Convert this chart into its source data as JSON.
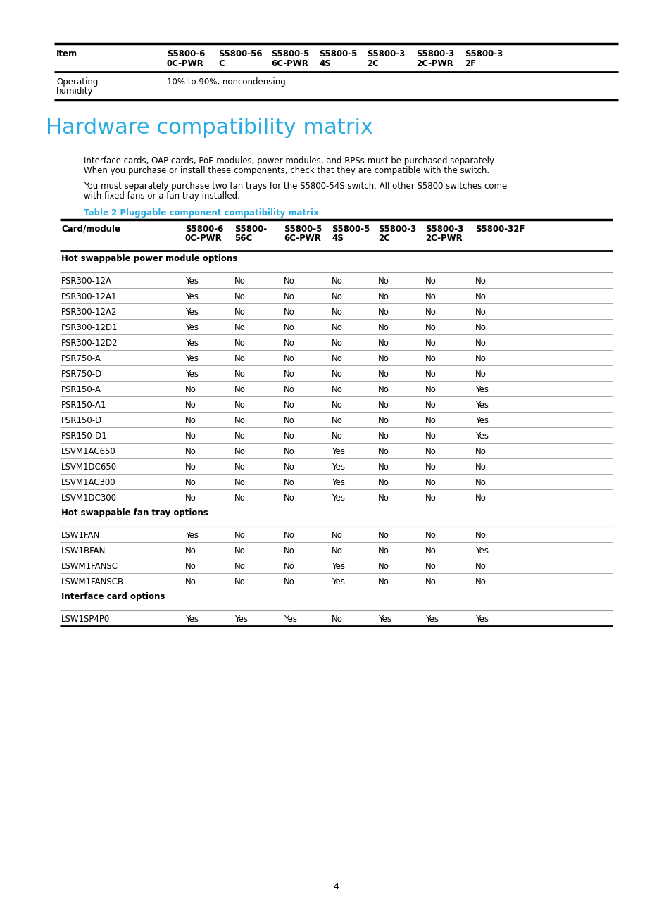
{
  "page_bg": "#ffffff",
  "top_table_headers": [
    "Item",
    "S5800-6\n0C-PWR",
    "S5800-56\nC",
    "S5800-5\n6C-PWR",
    "S5800-5\n4S",
    "S5800-3\n2C",
    "S5800-3\n2C-PWR",
    "S5800-3\n2F"
  ],
  "top_table_row_label": "Operating\nhumidity",
  "top_table_row_value": "10% to 90%, noncondensing",
  "section_title": "Hardware compatibility matrix",
  "section_title_color": "#29abe2",
  "para1_line1": "Interface cards, OAP cards, PoE modules, power modules, and RPSs must be purchased separately.",
  "para1_line2": "When you purchase or install these components, check that they are compatible with the switch.",
  "para2_line1": "You must separately purchase two fan trays for the S5800-54S switch. All other S5800 switches come",
  "para2_line2": "with fixed fans or a fan tray installed.",
  "table2_title": "Table 2 Pluggable component compatibility matrix",
  "table2_title_color": "#29abe2",
  "table2_col0_header": "Card/module",
  "table2_col_headers": [
    "S5800-6\n0C-PWR",
    "S5800-\n56C",
    "S5800-5\n6C-PWR",
    "S5800-5\n4S",
    "S5800-3\n2C",
    "S5800-3\n2C-PWR",
    "S5800-32F"
  ],
  "table2_sections": [
    {
      "section_name": "Hot swappable power module options",
      "rows": [
        [
          "PSR300-12A",
          "Yes",
          "No",
          "No",
          "No",
          "No",
          "No",
          "No"
        ],
        [
          "PSR300-12A1",
          "Yes",
          "No",
          "No",
          "No",
          "No",
          "No",
          "No"
        ],
        [
          "PSR300-12A2",
          "Yes",
          "No",
          "No",
          "No",
          "No",
          "No",
          "No"
        ],
        [
          "PSR300-12D1",
          "Yes",
          "No",
          "No",
          "No",
          "No",
          "No",
          "No"
        ],
        [
          "PSR300-12D2",
          "Yes",
          "No",
          "No",
          "No",
          "No",
          "No",
          "No"
        ],
        [
          "PSR750-A",
          "Yes",
          "No",
          "No",
          "No",
          "No",
          "No",
          "No"
        ],
        [
          "PSR750-D",
          "Yes",
          "No",
          "No",
          "No",
          "No",
          "No",
          "No"
        ],
        [
          "PSR150-A",
          "No",
          "No",
          "No",
          "No",
          "No",
          "No",
          "Yes"
        ],
        [
          "PSR150-A1",
          "No",
          "No",
          "No",
          "No",
          "No",
          "No",
          "Yes"
        ],
        [
          "PSR150-D",
          "No",
          "No",
          "No",
          "No",
          "No",
          "No",
          "Yes"
        ],
        [
          "PSR150-D1",
          "No",
          "No",
          "No",
          "No",
          "No",
          "No",
          "Yes"
        ],
        [
          "LSVM1AC650",
          "No",
          "No",
          "No",
          "Yes",
          "No",
          "No",
          "No"
        ],
        [
          "LSVM1DC650",
          "No",
          "No",
          "No",
          "Yes",
          "No",
          "No",
          "No"
        ],
        [
          "LSVM1AC300",
          "No",
          "No",
          "No",
          "Yes",
          "No",
          "No",
          "No"
        ],
        [
          "LSVM1DC300",
          "No",
          "No",
          "No",
          "Yes",
          "No",
          "No",
          "No"
        ]
      ]
    },
    {
      "section_name": "Hot swappable fan tray options",
      "rows": [
        [
          "LSW1FAN",
          "Yes",
          "No",
          "No",
          "No",
          "No",
          "No",
          "No"
        ],
        [
          "LSW1BFAN",
          "No",
          "No",
          "No",
          "No",
          "No",
          "No",
          "Yes"
        ],
        [
          "LSWM1FANSC",
          "No",
          "No",
          "No",
          "Yes",
          "No",
          "No",
          "No"
        ],
        [
          "LSWM1FANSCB",
          "No",
          "No",
          "No",
          "Yes",
          "No",
          "No",
          "No"
        ]
      ]
    },
    {
      "section_name": "Interface card options",
      "rows": [
        [
          "LSW1SP4P0",
          "Yes",
          "Yes",
          "Yes",
          "No",
          "Yes",
          "Yes",
          "Yes"
        ]
      ]
    }
  ],
  "page_number": "4"
}
